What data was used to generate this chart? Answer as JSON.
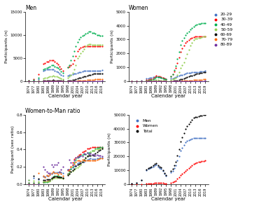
{
  "years": [
    1974,
    1977,
    1980,
    1983,
    1984,
    1985,
    1986,
    1987,
    1988,
    1989,
    1990,
    1991,
    1992,
    1993,
    1994,
    1995,
    1998,
    1999,
    2000,
    2001,
    2002,
    2003,
    2004,
    2005,
    2006,
    2007,
    2008,
    2009,
    2010,
    2011,
    2012,
    2013,
    2014,
    2015,
    2016,
    2017,
    2018,
    2019
  ],
  "men": {
    "20-29": [
      100,
      200,
      500,
      2200,
      2400,
      2500,
      2500,
      2600,
      2600,
      2500,
      2300,
      2100,
      1900,
      1700,
      1400,
      1200,
      1200,
      1300,
      1400,
      1500,
      1600,
      1700,
      1800,
      1900,
      2000,
      2100,
      2200,
      2200,
      2200,
      2200,
      2200,
      2300,
      2300,
      2300,
      2300,
      2300,
      2300,
      2400
    ],
    "30-39": [
      200,
      400,
      1500,
      3800,
      4000,
      4200,
      4300,
      4500,
      4500,
      4500,
      4200,
      3900,
      3600,
      3200,
      2700,
      2300,
      3000,
      3200,
      3500,
      3800,
      4500,
      5500,
      6500,
      7000,
      7200,
      7400,
      7500,
      7500,
      7500,
      7600,
      7500,
      7500,
      7500,
      7500,
      7500,
      7500,
      7500,
      7500
    ],
    "40-49": [
      100,
      300,
      800,
      2500,
      2700,
      2900,
      3000,
      3200,
      3400,
      3500,
      3200,
      3000,
      2800,
      2500,
      2100,
      1800,
      3000,
      3500,
      4500,
      5500,
      6500,
      7500,
      8500,
      9000,
      9500,
      9800,
      10000,
      10200,
      10500,
      10800,
      10800,
      10500,
      10500,
      10200,
      10000,
      10000,
      9800,
      9800
    ],
    "50-59": [
      20,
      50,
      150,
      600,
      700,
      800,
      900,
      1000,
      1100,
      1200,
      1100,
      1000,
      900,
      800,
      600,
      500,
      800,
      1000,
      1400,
      1800,
      2500,
      3500,
      5000,
      5500,
      6000,
      6500,
      7000,
      7500,
      7800,
      8000,
      8000,
      7800,
      7800,
      7800,
      7800,
      7800,
      7800,
      7800
    ],
    "60-69": [
      5,
      10,
      30,
      120,
      140,
      150,
      170,
      190,
      210,
      230,
      210,
      200,
      190,
      160,
      130,
      110,
      150,
      180,
      220,
      260,
      350,
      450,
      600,
      700,
      800,
      900,
      1000,
      1100,
      1200,
      1300,
      1400,
      1500,
      1600,
      1600,
      1600,
      1600,
      1600,
      1600
    ],
    "70-79": [
      2,
      4,
      8,
      20,
      25,
      28,
      30,
      35,
      38,
      42,
      40,
      38,
      35,
      30,
      25,
      20,
      25,
      30,
      35,
      42,
      55,
      70,
      90,
      110,
      130,
      150,
      180,
      210,
      240,
      270,
      300,
      330,
      360,
      390,
      400,
      420,
      440,
      460
    ],
    "80-89": [
      1,
      2,
      3,
      5,
      6,
      7,
      8,
      8,
      9,
      10,
      9,
      9,
      8,
      7,
      6,
      5,
      6,
      7,
      8,
      9,
      11,
      13,
      16,
      19,
      21,
      25,
      28,
      32,
      36,
      40,
      45,
      50,
      55,
      60,
      65,
      70,
      75,
      80
    ]
  },
  "women": {
    "20-29": [
      5,
      15,
      30,
      200,
      220,
      240,
      260,
      290,
      320,
      340,
      310,
      290,
      270,
      230,
      190,
      150,
      200,
      220,
      250,
      280,
      330,
      380,
      430,
      470,
      510,
      550,
      580,
      600,
      620,
      640,
      650,
      660,
      660,
      670,
      680,
      700,
      720,
      740
    ],
    "30-39": [
      3,
      8,
      20,
      100,
      120,
      140,
      160,
      200,
      280,
      380,
      360,
      340,
      310,
      270,
      220,
      170,
      350,
      480,
      700,
      950,
      1300,
      1700,
      2100,
      2350,
      2550,
      2750,
      2850,
      2950,
      3050,
      3100,
      3150,
      3200,
      3200,
      3200,
      3200,
      3200,
      3200,
      3200
    ],
    "40-49": [
      2,
      5,
      12,
      60,
      70,
      80,
      100,
      140,
      220,
      320,
      300,
      280,
      260,
      220,
      170,
      130,
      350,
      520,
      800,
      1100,
      1600,
      2100,
      2600,
      2900,
      3100,
      3300,
      3500,
      3600,
      3750,
      3850,
      3950,
      4050,
      4100,
      4150,
      4150,
      4200,
      4200,
      4200
    ],
    "50-59": [
      1,
      2,
      5,
      18,
      22,
      27,
      32,
      42,
      65,
      88,
      80,
      75,
      70,
      58,
      42,
      32,
      90,
      130,
      200,
      270,
      430,
      640,
      950,
      1150,
      1350,
      1650,
      1950,
      2250,
      2550,
      2750,
      2950,
      3050,
      3050,
      3100,
      3100,
      3150,
      3200,
      3200
    ],
    "60-69": [
      0,
      1,
      2,
      6,
      7,
      8,
      9,
      11,
      16,
      19,
      18,
      17,
      15,
      13,
      10,
      8,
      16,
      21,
      32,
      42,
      63,
      93,
      135,
      165,
      195,
      235,
      285,
      335,
      385,
      425,
      465,
      505,
      535,
      565,
      595,
      615,
      635,
      655
    ],
    "70-79": [
      0,
      0,
      1,
      2,
      2,
      3,
      3,
      4,
      5,
      6,
      5,
      5,
      4,
      4,
      3,
      2,
      4,
      5,
      7,
      9,
      13,
      18,
      25,
      30,
      35,
      42,
      50,
      58,
      66,
      74,
      82,
      90,
      98,
      106,
      114,
      122,
      130,
      138
    ],
    "80-89": [
      0,
      0,
      0,
      1,
      1,
      1,
      1,
      1,
      2,
      2,
      2,
      2,
      2,
      1,
      1,
      1,
      1,
      2,
      2,
      2,
      3,
      4,
      5,
      6,
      7,
      8,
      10,
      11,
      13,
      14,
      16,
      17,
      19,
      20,
      22,
      23,
      25,
      26
    ]
  },
  "total": {
    "men": [
      500,
      1000,
      3200,
      10000,
      11000,
      11500,
      12000,
      12800,
      13500,
      14000,
      12500,
      11800,
      11000,
      9500,
      7500,
      6200,
      8500,
      9800,
      11500,
      13500,
      17000,
      20000,
      24000,
      26000,
      28000,
      30000,
      31000,
      31500,
      32000,
      32500,
      33000,
      33000,
      33000,
      33000,
      33000,
      33000,
      33000,
      33000
    ],
    "women": [
      12,
      30,
      70,
      400,
      450,
      500,
      560,
      690,
      930,
      1160,
      1060,
      990,
      920,
      770,
      600,
      450,
      1010,
      1380,
      2000,
      2660,
      3800,
      5000,
      6500,
      7600,
      8600,
      9600,
      10600,
      11600,
      12600,
      13600,
      14600,
      15100,
      15600,
      16100,
      16300,
      16500,
      16800,
      17100
    ],
    "total": [
      512,
      1030,
      3270,
      10400,
      11450,
      12000,
      12560,
      13490,
      14430,
      15160,
      13560,
      12790,
      11920,
      10270,
      8100,
      6650,
      9510,
      11180,
      13500,
      16160,
      20800,
      25000,
      30500,
      33600,
      36600,
      39600,
      41600,
      43100,
      44600,
      46100,
      47600,
      48100,
      48600,
      49100,
      49300,
      49500,
      49800,
      50100
    ]
  },
  "ratio": {
    "20-29": [
      0.05,
      0.075,
      0.06,
      0.09,
      0.09,
      0.1,
      0.1,
      0.11,
      0.12,
      0.14,
      0.14,
      0.14,
      0.14,
      0.14,
      0.14,
      0.13,
      0.17,
      0.17,
      0.18,
      0.19,
      0.21,
      0.22,
      0.24,
      0.25,
      0.26,
      0.26,
      0.26,
      0.27,
      0.28,
      0.29,
      0.3,
      0.29,
      0.29,
      0.29,
      0.3,
      0.3,
      0.31,
      0.31
    ],
    "30-39": [
      0.015,
      0.02,
      0.013,
      0.026,
      0.03,
      0.033,
      0.037,
      0.044,
      0.062,
      0.084,
      0.086,
      0.087,
      0.086,
      0.084,
      0.081,
      0.074,
      0.117,
      0.15,
      0.2,
      0.25,
      0.29,
      0.31,
      0.32,
      0.34,
      0.35,
      0.37,
      0.38,
      0.39,
      0.41,
      0.41,
      0.42,
      0.43,
      0.43,
      0.43,
      0.43,
      0.43,
      0.43,
      0.43
    ],
    "40-49": [
      0.02,
      0.017,
      0.015,
      0.024,
      0.026,
      0.028,
      0.033,
      0.044,
      0.065,
      0.091,
      0.094,
      0.093,
      0.093,
      0.088,
      0.081,
      0.072,
      0.117,
      0.149,
      0.178,
      0.2,
      0.25,
      0.28,
      0.31,
      0.32,
      0.33,
      0.34,
      0.35,
      0.35,
      0.36,
      0.36,
      0.37,
      0.39,
      0.39,
      0.41,
      0.42,
      0.42,
      0.43,
      0.43
    ],
    "50-59": [
      0.05,
      0.04,
      0.033,
      0.03,
      0.031,
      0.034,
      0.036,
      0.042,
      0.059,
      0.073,
      0.073,
      0.075,
      0.078,
      0.073,
      0.07,
      0.064,
      0.113,
      0.13,
      0.143,
      0.15,
      0.172,
      0.183,
      0.19,
      0.21,
      0.225,
      0.254,
      0.279,
      0.3,
      0.327,
      0.344,
      0.369,
      0.39,
      0.39,
      0.4,
      0.4,
      0.4,
      0.41,
      0.41
    ],
    "60-69": [
      0,
      0.1,
      0.067,
      0.05,
      0.05,
      0.053,
      0.053,
      0.058,
      0.076,
      0.083,
      0.086,
      0.085,
      0.079,
      0.081,
      0.077,
      0.073,
      0.107,
      0.117,
      0.145,
      0.162,
      0.18,
      0.207,
      0.225,
      0.236,
      0.244,
      0.261,
      0.285,
      0.305,
      0.321,
      0.327,
      0.332,
      0.337,
      0.334,
      0.353,
      0.372,
      0.384,
      0.397,
      0.409
    ],
    "70-79": [
      0,
      0,
      0.125,
      0.1,
      0.08,
      0.107,
      0.1,
      0.114,
      0.132,
      0.143,
      0.125,
      0.132,
      0.114,
      0.133,
      0.12,
      0.1,
      0.16,
      0.167,
      0.2,
      0.214,
      0.236,
      0.257,
      0.278,
      0.273,
      0.269,
      0.28,
      0.278,
      0.276,
      0.275,
      0.274,
      0.273,
      0.273,
      0.272,
      0.272,
      0.285,
      0.29,
      0.295,
      0.3
    ],
    "80-89": [
      0,
      0,
      0,
      0.2,
      0.167,
      0.143,
      0.125,
      0.125,
      0.222,
      0.2,
      0.222,
      0.222,
      0.25,
      0.143,
      0.167,
      0.2,
      0.167,
      0.286,
      0.25,
      0.222,
      0.273,
      0.308,
      0.313,
      0.316,
      0.333,
      0.32,
      0.357,
      0.344,
      0.361,
      0.35,
      0.356,
      0.34,
      0.345,
      0.333,
      0.338,
      0.329,
      0.333,
      0.325
    ]
  },
  "age_colors": {
    "20-29": "#4472C4",
    "30-39": "#FF0000",
    "40-49": "#00B050",
    "50-59": "#92D050",
    "60-69": "#000000",
    "70-79": "#FF6600",
    "80-89": "#7030A0"
  },
  "total_colors_order": [
    "men",
    "women",
    "total"
  ],
  "total_labels": [
    "Men",
    "Women",
    "Total"
  ],
  "total_colors": [
    "#4472C4",
    "#FF0000",
    "#000000"
  ],
  "tick_years": [
    1974,
    1977,
    1980,
    1983,
    1986,
    1989,
    1992,
    1995,
    1998,
    2001,
    2004,
    2007,
    2010,
    2013,
    2016,
    2019
  ],
  "ms": 2.5,
  "background_color": "#FFFFFF"
}
